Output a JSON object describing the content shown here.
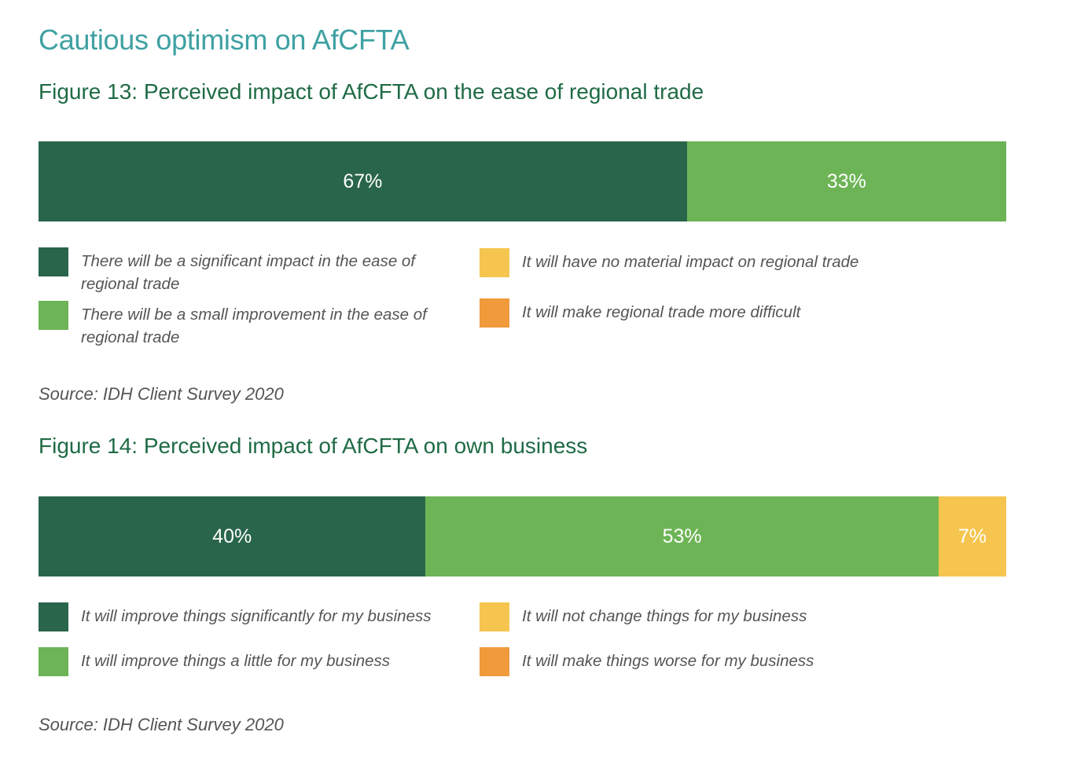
{
  "page": {
    "heading": "Cautious optimism on AfCFTA"
  },
  "chart_data": [
    {
      "type": "bar",
      "orientation": "horizontal-stacked-100",
      "title": "Figure 13: Perceived impact of AfCFTA on the ease of regional trade",
      "categories": [
        ""
      ],
      "series": [
        {
          "name": "There will be a significant impact in the ease of regional trade",
          "values": [
            67
          ],
          "label": "67%",
          "color": "#29654a"
        },
        {
          "name": "There will be a small improvement in the ease of regional trade",
          "values": [
            33
          ],
          "label": "33%",
          "color": "#6db456"
        },
        {
          "name": "It will have no material impact on regional trade",
          "values": [
            0
          ],
          "label": "",
          "color": "#f6c54f"
        },
        {
          "name": "It will make regional trade more difficult",
          "values": [
            0
          ],
          "label": "",
          "color": "#f19a3b"
        }
      ],
      "xlim": [
        0,
        100
      ],
      "legend": "bottom",
      "source": "Source: IDH Client Survey 2020"
    },
    {
      "type": "bar",
      "orientation": "horizontal-stacked-100",
      "title": "Figure 14: Perceived impact of AfCFTA on own business",
      "categories": [
        ""
      ],
      "series": [
        {
          "name": "It will improve things significantly for my business",
          "values": [
            40
          ],
          "label": "40%",
          "color": "#29654a"
        },
        {
          "name": "It will improve things a little for my business",
          "values": [
            53
          ],
          "label": "53%",
          "color": "#6db456"
        },
        {
          "name": "It will not change things for my business",
          "values": [
            7
          ],
          "label": "7%",
          "color": "#f6c54f"
        },
        {
          "name": "It will make things worse for my business",
          "values": [
            0
          ],
          "label": "",
          "color": "#f19a3b"
        }
      ],
      "xlim": [
        0,
        100
      ],
      "legend": "bottom",
      "source": "Source: IDH Client Survey 2020"
    }
  ]
}
